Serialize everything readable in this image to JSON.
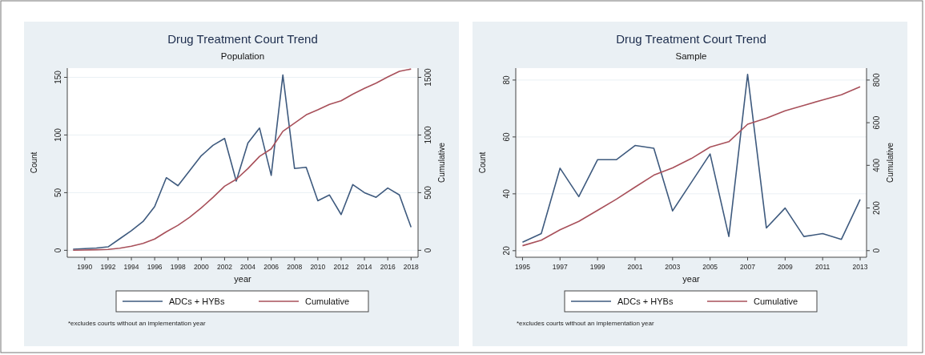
{
  "chart_data": [
    {
      "type": "line",
      "title": "Drug Treatment Court Trend",
      "subtitle": "Population",
      "xlabel": "year",
      "ylabel": "Count",
      "y2label": "Cumulative",
      "x": [
        1989,
        1990,
        1991,
        1992,
        1993,
        1994,
        1995,
        1996,
        1997,
        1998,
        1999,
        2000,
        2001,
        2002,
        2003,
        2004,
        2005,
        2006,
        2007,
        2008,
        2009,
        2010,
        2011,
        2012,
        2013,
        2014,
        2015,
        2016,
        2017,
        2018
      ],
      "series": [
        {
          "name": "ADCs + HYBs",
          "color": "#3e5a7e",
          "values": [
            1,
            1.5,
            2,
            3,
            10,
            17,
            25,
            38,
            63,
            56,
            69,
            82,
            91,
            97,
            60,
            93,
            106,
            65,
            152,
            71,
            72,
            43,
            48,
            31,
            57,
            50,
            46,
            54,
            48,
            20
          ]
        },
        {
          "name": "Cumulative",
          "color": "#a8505a",
          "axis": "y2",
          "values": [
            1,
            3,
            5,
            8,
            18,
            35,
            60,
            98,
            161,
            217,
            286,
            368,
            459,
            556,
            616,
            709,
            815,
            880,
            1032,
            1103,
            1175,
            1218,
            1266,
            1297,
            1354,
            1404,
            1450,
            1504,
            1552,
            1572
          ]
        }
      ],
      "xlim": [
        1988.5,
        2018.6
      ],
      "xticks": [
        1990,
        1992,
        1994,
        1996,
        1998,
        2000,
        2002,
        2004,
        2006,
        2008,
        2010,
        2012,
        2014,
        2016,
        2018
      ],
      "ylim": [
        -6,
        158
      ],
      "yticks": [
        0,
        50,
        100,
        150
      ],
      "y2lim": [
        -60,
        1580
      ],
      "y2ticks": [
        0,
        500,
        1000,
        1500
      ],
      "grid": "y",
      "legend": "bottom",
      "annotations": [
        "*excludes courts without an implementation year"
      ]
    },
    {
      "type": "line",
      "title": "Drug Treatment Court Trend",
      "subtitle": "Sample",
      "xlabel": "year",
      "ylabel": "Count",
      "y2label": "Cumulative",
      "x": [
        1995,
        1996,
        1997,
        1998,
        1999,
        2000,
        2001,
        2002,
        2003,
        2004,
        2005,
        2006,
        2007,
        2008,
        2009,
        2010,
        2011,
        2012,
        2013
      ],
      "series": [
        {
          "name": "ADCs + HYBs",
          "color": "#3e5a7e",
          "values": [
            23,
            26,
            49,
            39,
            52,
            52,
            57,
            56,
            34,
            44,
            54,
            25,
            82,
            28,
            35,
            25,
            26,
            24,
            38
          ]
        },
        {
          "name": "Cumulative",
          "color": "#a8505a",
          "axis": "y2",
          "values": [
            23,
            49,
            98,
            137,
            189,
            241,
            298,
            354,
            388,
            432,
            486,
            511,
            593,
            621,
            656,
            681,
            707,
            731,
            769
          ]
        }
      ],
      "xlim": [
        1994.64,
        2013.34
      ],
      "xticks": [
        1995,
        1997,
        1999,
        2001,
        2003,
        2005,
        2007,
        2009,
        2011,
        2013
      ],
      "ylim": [
        17.7,
        84.2
      ],
      "yticks": [
        20,
        40,
        60,
        80
      ],
      "y2lim": [
        -31,
        856
      ],
      "y2ticks": [
        0,
        200,
        400,
        600,
        800
      ],
      "grid": "y",
      "legend": "bottom",
      "annotations": [
        "*excludes courts without an implementation year"
      ]
    }
  ]
}
